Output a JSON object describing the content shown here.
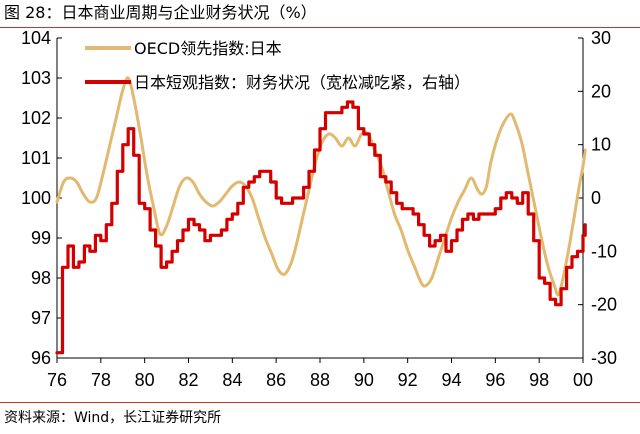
{
  "title": "图 28：日本商业周期与企业财务状况（%）",
  "source": "资料来源：Wind，长江证券研究所",
  "colors": {
    "oecd": "#E1B96F",
    "tankan": "#D40000",
    "axis": "#000000",
    "rule": "#C0392B"
  },
  "chart_data": {
    "type": "line",
    "xlim": [
      1976,
      2000
    ],
    "x_ticks": [
      {
        "value": 1976,
        "label": "76"
      },
      {
        "value": 1978,
        "label": "78"
      },
      {
        "value": 1980,
        "label": "80"
      },
      {
        "value": 1982,
        "label": "82"
      },
      {
        "value": 1984,
        "label": "84"
      },
      {
        "value": 1986,
        "label": "86"
      },
      {
        "value": 1988,
        "label": "88"
      },
      {
        "value": 1990,
        "label": "90"
      },
      {
        "value": 1992,
        "label": "92"
      },
      {
        "value": 1994,
        "label": "94"
      },
      {
        "value": 1996,
        "label": "96"
      },
      {
        "value": 1998,
        "label": "98"
      },
      {
        "value": 2000,
        "label": "00"
      }
    ],
    "y_left": {
      "ylim": [
        96,
        104
      ],
      "ticks": [
        96,
        97,
        98,
        99,
        100,
        101,
        102,
        103,
        104
      ]
    },
    "y_right": {
      "ylim": [
        -30,
        30
      ],
      "ticks": [
        -30,
        -20,
        -10,
        0,
        10,
        20,
        30
      ]
    },
    "legend_position": "top-left",
    "series": [
      {
        "name": "OECD领先指数:日本",
        "axis": "left",
        "style": "smooth",
        "points": [
          [
            1976.0,
            99.9
          ],
          [
            1976.3,
            100.4
          ],
          [
            1976.6,
            100.5
          ],
          [
            1976.9,
            100.4
          ],
          [
            1977.2,
            100.1
          ],
          [
            1977.5,
            99.9
          ],
          [
            1977.8,
            100.0
          ],
          [
            1978.1,
            100.6
          ],
          [
            1978.4,
            101.3
          ],
          [
            1978.7,
            102.0
          ],
          [
            1979.0,
            102.7
          ],
          [
            1979.25,
            103.0
          ],
          [
            1979.5,
            102.5
          ],
          [
            1979.8,
            101.6
          ],
          [
            1980.1,
            100.6
          ],
          [
            1980.4,
            99.8
          ],
          [
            1980.7,
            99.1
          ],
          [
            1981.0,
            99.3
          ],
          [
            1981.3,
            99.8
          ],
          [
            1981.6,
            100.3
          ],
          [
            1981.9,
            100.5
          ],
          [
            1982.2,
            100.4
          ],
          [
            1982.5,
            100.1
          ],
          [
            1982.8,
            99.9
          ],
          [
            1983.1,
            99.8
          ],
          [
            1983.4,
            99.9
          ],
          [
            1983.7,
            100.1
          ],
          [
            1984.0,
            100.3
          ],
          [
            1984.3,
            100.4
          ],
          [
            1984.6,
            100.3
          ],
          [
            1984.9,
            100.0
          ],
          [
            1985.2,
            99.5
          ],
          [
            1985.5,
            99.0
          ],
          [
            1985.8,
            98.6
          ],
          [
            1986.1,
            98.2
          ],
          [
            1986.4,
            98.1
          ],
          [
            1986.7,
            98.4
          ],
          [
            1986.95,
            98.9
          ],
          [
            1987.2,
            99.5
          ],
          [
            1987.5,
            100.2
          ],
          [
            1987.8,
            100.9
          ],
          [
            1988.1,
            101.4
          ],
          [
            1988.4,
            101.6
          ],
          [
            1988.7,
            101.5
          ],
          [
            1989.0,
            101.3
          ],
          [
            1989.3,
            101.5
          ],
          [
            1989.6,
            101.3
          ],
          [
            1989.9,
            101.6
          ],
          [
            1990.2,
            101.6
          ],
          [
            1990.5,
            101.2
          ],
          [
            1990.8,
            100.8
          ],
          [
            1991.1,
            100.2
          ],
          [
            1991.4,
            99.6
          ],
          [
            1991.7,
            99.2
          ],
          [
            1992.0,
            98.7
          ],
          [
            1992.3,
            98.3
          ],
          [
            1992.6,
            97.9
          ],
          [
            1992.8,
            97.8
          ],
          [
            1993.1,
            98.0
          ],
          [
            1993.4,
            98.5
          ],
          [
            1993.7,
            99.0
          ],
          [
            1994.0,
            99.5
          ],
          [
            1994.3,
            99.9
          ],
          [
            1994.6,
            100.2
          ],
          [
            1994.9,
            100.5
          ],
          [
            1995.2,
            100.2
          ],
          [
            1995.4,
            100.1
          ],
          [
            1995.6,
            100.3
          ],
          [
            1995.8,
            100.9
          ],
          [
            1996.1,
            101.5
          ],
          [
            1996.4,
            101.9
          ],
          [
            1996.7,
            102.1
          ],
          [
            1996.9,
            101.9
          ],
          [
            1997.2,
            101.4
          ],
          [
            1997.5,
            100.6
          ],
          [
            1997.8,
            99.8
          ],
          [
            1998.1,
            99.0
          ],
          [
            1998.4,
            98.3
          ],
          [
            1998.7,
            97.8
          ],
          [
            1998.9,
            97.6
          ],
          [
            1999.2,
            98.3
          ],
          [
            1999.5,
            99.2
          ],
          [
            1999.8,
            100.2
          ],
          [
            2000.0,
            100.8
          ],
          [
            2000.1,
            101.2
          ]
        ]
      },
      {
        "name": "日本短观指数：财务状况（宽松减吃紧，右轴）",
        "axis": "right",
        "style": "step",
        "points": [
          [
            1976.0,
            -29
          ],
          [
            1976.25,
            -13
          ],
          [
            1976.5,
            -9
          ],
          [
            1976.75,
            -13
          ],
          [
            1977.0,
            -12
          ],
          [
            1977.25,
            -9
          ],
          [
            1977.5,
            -10
          ],
          [
            1977.75,
            -7
          ],
          [
            1978.0,
            -8
          ],
          [
            1978.25,
            -5
          ],
          [
            1978.5,
            -1
          ],
          [
            1978.75,
            5
          ],
          [
            1979.0,
            10
          ],
          [
            1979.25,
            13
          ],
          [
            1979.5,
            8
          ],
          [
            1979.75,
            -1
          ],
          [
            1980.0,
            -2
          ],
          [
            1980.25,
            -6
          ],
          [
            1980.5,
            -9
          ],
          [
            1980.75,
            -13
          ],
          [
            1981.0,
            -12
          ],
          [
            1981.25,
            -10
          ],
          [
            1981.5,
            -8
          ],
          [
            1981.75,
            -6
          ],
          [
            1982.0,
            -4
          ],
          [
            1982.25,
            -5
          ],
          [
            1982.5,
            -6
          ],
          [
            1982.75,
            -8
          ],
          [
            1983.0,
            -7
          ],
          [
            1983.25,
            -7
          ],
          [
            1983.5,
            -6
          ],
          [
            1983.75,
            -4
          ],
          [
            1984.0,
            -3
          ],
          [
            1984.25,
            -1
          ],
          [
            1984.5,
            2
          ],
          [
            1984.75,
            3
          ],
          [
            1985.0,
            4
          ],
          [
            1985.25,
            5
          ],
          [
            1985.5,
            5
          ],
          [
            1985.75,
            3
          ],
          [
            1986.0,
            0
          ],
          [
            1986.25,
            -1
          ],
          [
            1986.5,
            -1
          ],
          [
            1986.75,
            0
          ],
          [
            1987.0,
            0
          ],
          [
            1987.25,
            2
          ],
          [
            1987.5,
            5
          ],
          [
            1987.75,
            9
          ],
          [
            1988.0,
            13
          ],
          [
            1988.25,
            16
          ],
          [
            1988.5,
            16
          ],
          [
            1988.75,
            16
          ],
          [
            1989.0,
            17
          ],
          [
            1989.25,
            18
          ],
          [
            1989.5,
            17
          ],
          [
            1989.75,
            13
          ],
          [
            1990.0,
            12
          ],
          [
            1990.25,
            10
          ],
          [
            1990.5,
            8
          ],
          [
            1990.75,
            4
          ],
          [
            1991.0,
            3
          ],
          [
            1991.25,
            1
          ],
          [
            1991.5,
            -1
          ],
          [
            1991.75,
            -2
          ],
          [
            1992.0,
            -2
          ],
          [
            1992.25,
            -3
          ],
          [
            1992.5,
            -5
          ],
          [
            1992.75,
            -7
          ],
          [
            1993.0,
            -9
          ],
          [
            1993.25,
            -8
          ],
          [
            1993.5,
            -7
          ],
          [
            1993.75,
            -10
          ],
          [
            1994.0,
            -8
          ],
          [
            1994.25,
            -6
          ],
          [
            1994.5,
            -4
          ],
          [
            1994.75,
            -3
          ],
          [
            1995.0,
            -4
          ],
          [
            1995.25,
            -3
          ],
          [
            1995.5,
            -3
          ],
          [
            1995.75,
            -3
          ],
          [
            1996.0,
            -2
          ],
          [
            1996.25,
            0
          ],
          [
            1996.5,
            1
          ],
          [
            1996.75,
            0
          ],
          [
            1997.0,
            -1
          ],
          [
            1997.25,
            1
          ],
          [
            1997.5,
            -3
          ],
          [
            1997.75,
            -8
          ],
          [
            1998.0,
            -15
          ],
          [
            1998.25,
            -16
          ],
          [
            1998.5,
            -19
          ],
          [
            1998.75,
            -20
          ],
          [
            1999.0,
            -17
          ],
          [
            1999.25,
            -13
          ],
          [
            1999.5,
            -11
          ],
          [
            1999.75,
            -10
          ],
          [
            2000.0,
            -7
          ],
          [
            2000.1,
            -5
          ]
        ]
      }
    ]
  }
}
